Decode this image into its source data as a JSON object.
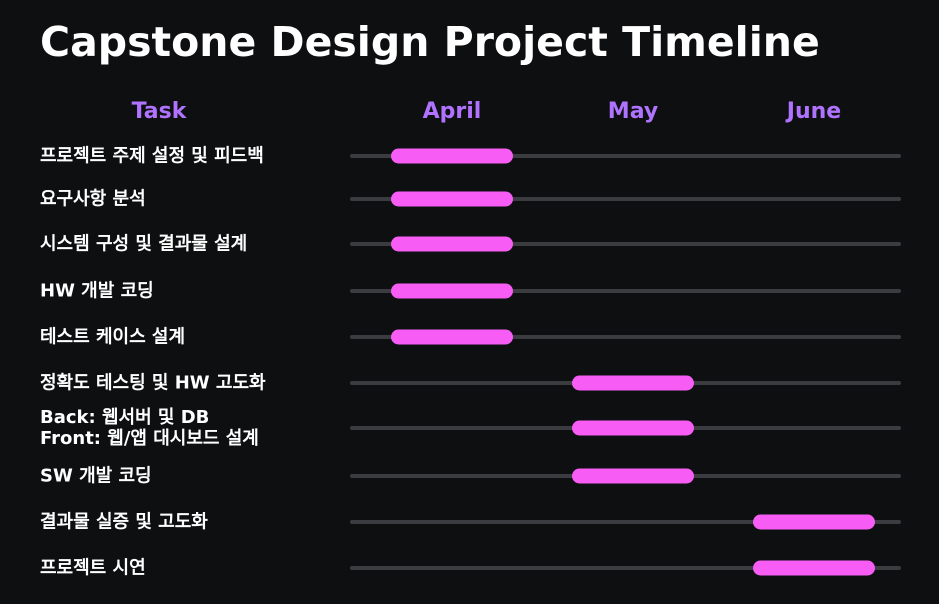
{
  "title": "Capstone Design Project Timeline",
  "colors": {
    "background": "#0e0f11",
    "header": "#b073ff",
    "bar": "#f75cf5",
    "track": "#3b3c3f",
    "text": "#ffffff"
  },
  "chart_data": {
    "type": "gantt",
    "title": "Capstone Design Project Timeline",
    "task_column_header": "Task",
    "periods": [
      "April",
      "May",
      "June"
    ],
    "tasks": [
      {
        "label": "프로젝트 주제 설정 및 피드백",
        "start_period": "April",
        "end_period": "April"
      },
      {
        "label": "요구사항 분석",
        "start_period": "April",
        "end_period": "April"
      },
      {
        "label": "시스템 구성 및 결과물 설계",
        "start_period": "April",
        "end_period": "April"
      },
      {
        "label": "HW 개발 코딩",
        "start_period": "April",
        "end_period": "April"
      },
      {
        "label": "테스트 케이스 설계",
        "start_period": "April",
        "end_period": "April"
      },
      {
        "label": "정확도 테스팅 및 HW 고도화",
        "start_period": "May",
        "end_period": "May"
      },
      {
        "label": "Back: 웹서버 및 DB\nFront: 웹/앱 대시보드 설계",
        "start_period": "May",
        "end_period": "May"
      },
      {
        "label": "SW 개발 코딩",
        "start_period": "May",
        "end_period": "May"
      },
      {
        "label": "결과물 실증 및 고도화",
        "start_period": "June",
        "end_period": "June"
      },
      {
        "label": "프로젝트 시연",
        "start_period": "June",
        "end_period": "June"
      }
    ]
  }
}
